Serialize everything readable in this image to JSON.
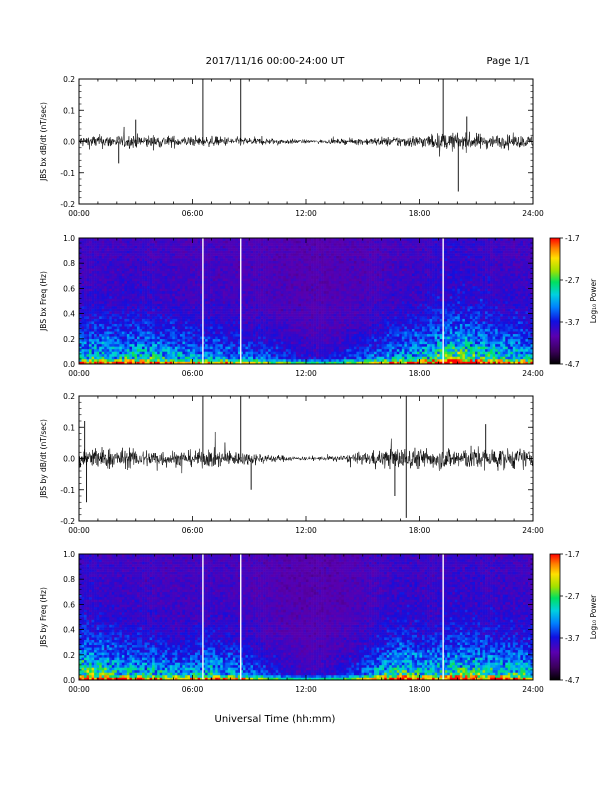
{
  "header": {
    "title": "2017/11/16  00:00-24:00 UT",
    "page": "Page 1/1"
  },
  "footer": {
    "xlabel": "Universal Time (hh:mm)"
  },
  "colors": {
    "trace": "#000000",
    "spectrogram_background": "#2a0a4a",
    "colormap": [
      "#000000",
      "#3a005a",
      "#5a00b0",
      "#1010e0",
      "#0080ff",
      "#00d0e0",
      "#00e060",
      "#a0e000",
      "#ffe000",
      "#ff8000",
      "#ff0000"
    ]
  },
  "chart_data": [
    {
      "type": "line",
      "ylabel": "JBS bx dB/dt (nT/sec)",
      "x_ticks": [
        "00:00",
        "06:00",
        "12:00",
        "18:00",
        "24:00"
      ],
      "xlim": [
        0,
        24
      ],
      "ylim": [
        -0.2,
        0.2
      ],
      "y_ticks": [
        "0.2",
        "0.1",
        "0.0",
        "-0.1",
        "-0.2"
      ],
      "noise_envelope": {
        "x": [
          0,
          1,
          2,
          3,
          4,
          5,
          6,
          7,
          8,
          9,
          10,
          11,
          12,
          13,
          14,
          15,
          16,
          17,
          18,
          19,
          20,
          21,
          22,
          23,
          24
        ],
        "amplitude": [
          0.025,
          0.03,
          0.028,
          0.03,
          0.028,
          0.025,
          0.022,
          0.022,
          0.02,
          0.018,
          0.015,
          0.012,
          0.008,
          0.008,
          0.012,
          0.015,
          0.02,
          0.025,
          0.028,
          0.035,
          0.04,
          0.035,
          0.03,
          0.028,
          0.025
        ]
      },
      "spikes": [
        {
          "x": 6.55,
          "y": 0.2
        },
        {
          "x": 8.55,
          "y": 0.2
        },
        {
          "x": 19.25,
          "y": 0.2
        },
        {
          "x": 20.05,
          "y": -0.16
        },
        {
          "x": 20.5,
          "y": 0.08
        },
        {
          "x": 3.0,
          "y": 0.07
        },
        {
          "x": 2.1,
          "y": -0.07
        }
      ]
    },
    {
      "type": "heatmap",
      "ylabel": "JBS bx Freq (Hz)",
      "x_ticks": [
        "00:00",
        "06:00",
        "12:00",
        "18:00",
        "24:00"
      ],
      "xlim": [
        0,
        24
      ],
      "ylim": [
        0,
        1
      ],
      "y_ticks": [
        "1.0",
        "0.8",
        "0.6",
        "0.4",
        "0.2",
        "0.0"
      ],
      "colorbar": {
        "label": "Log₁₀ Power",
        "ticks": [
          "-1.7",
          "-2.7",
          "-3.7",
          "-4.7"
        ],
        "range": [
          -4.7,
          -1.7
        ]
      },
      "gaps_hours": [
        6.55,
        8.55,
        19.25
      ]
    },
    {
      "type": "line",
      "ylabel": "JBS by dB/dt (nT/sec)",
      "x_ticks": [
        "00:00",
        "06:00",
        "12:00",
        "18:00",
        "24:00"
      ],
      "xlim": [
        0,
        24
      ],
      "ylim": [
        -0.2,
        0.2
      ],
      "y_ticks": [
        "0.2",
        "0.1",
        "0.0",
        "-0.1",
        "-0.2"
      ],
      "noise_envelope": {
        "x": [
          0,
          1,
          2,
          3,
          4,
          5,
          6,
          7,
          8,
          9,
          10,
          11,
          12,
          13,
          14,
          15,
          16,
          17,
          18,
          19,
          20,
          21,
          22,
          23,
          24
        ],
        "amplitude": [
          0.06,
          0.05,
          0.045,
          0.04,
          0.04,
          0.035,
          0.035,
          0.04,
          0.035,
          0.028,
          0.02,
          0.012,
          0.008,
          0.01,
          0.015,
          0.025,
          0.04,
          0.05,
          0.045,
          0.045,
          0.05,
          0.05,
          0.045,
          0.045,
          0.04
        ]
      },
      "spikes": [
        {
          "x": 6.55,
          "y": 0.2
        },
        {
          "x": 8.55,
          "y": 0.2
        },
        {
          "x": 19.25,
          "y": 0.2
        },
        {
          "x": 17.3,
          "y": 0.2
        },
        {
          "x": 17.3,
          "y": -0.19
        },
        {
          "x": 0.3,
          "y": 0.12
        },
        {
          "x": 0.4,
          "y": -0.14
        },
        {
          "x": 9.1,
          "y": -0.1
        },
        {
          "x": 16.7,
          "y": -0.12
        },
        {
          "x": 21.5,
          "y": 0.11
        }
      ]
    },
    {
      "type": "heatmap",
      "ylabel": "JBS by Freq (Hz)",
      "x_ticks": [
        "00:00",
        "06:00",
        "12:00",
        "18:00",
        "24:00"
      ],
      "xlim": [
        0,
        24
      ],
      "ylim": [
        0,
        1
      ],
      "y_ticks": [
        "1.0",
        "0.8",
        "0.6",
        "0.4",
        "0.2",
        "0.0"
      ],
      "colorbar": {
        "label": "Log₁₀ Power",
        "ticks": [
          "-1.7",
          "-2.7",
          "-3.7",
          "-4.7"
        ],
        "range": [
          -4.7,
          -1.7
        ]
      },
      "gaps_hours": [
        6.55,
        8.55,
        19.25
      ]
    }
  ]
}
